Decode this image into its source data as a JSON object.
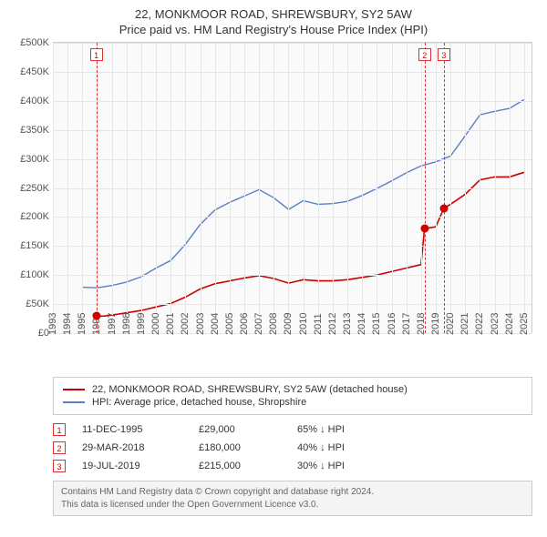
{
  "title": "22, MONKMOOR ROAD, SHREWSBURY, SY2 5AW",
  "subtitle": "Price paid vs. HM Land Registry's House Price Index (HPI)",
  "chart": {
    "type": "line",
    "background_color": "#fafafa",
    "grid_color": "#e6e6e6",
    "border_color": "#cccccc",
    "x_range": [
      1993,
      2025.5
    ],
    "y_range": [
      0,
      500000
    ],
    "y_ticks": [
      {
        "v": 0,
        "label": "£0"
      },
      {
        "v": 50000,
        "label": "£50K"
      },
      {
        "v": 100000,
        "label": "£100K"
      },
      {
        "v": 150000,
        "label": "£150K"
      },
      {
        "v": 200000,
        "label": "£200K"
      },
      {
        "v": 250000,
        "label": "£250K"
      },
      {
        "v": 300000,
        "label": "£300K"
      },
      {
        "v": 350000,
        "label": "£350K"
      },
      {
        "v": 400000,
        "label": "£400K"
      },
      {
        "v": 450000,
        "label": "£450K"
      },
      {
        "v": 500000,
        "label": "£500K"
      }
    ],
    "x_ticks": [
      1993,
      1994,
      1995,
      1996,
      1997,
      1998,
      1999,
      2000,
      2001,
      2002,
      2003,
      2004,
      2005,
      2006,
      2007,
      2008,
      2009,
      2010,
      2011,
      2012,
      2013,
      2014,
      2015,
      2016,
      2017,
      2018,
      2019,
      2020,
      2021,
      2022,
      2023,
      2024,
      2025
    ],
    "series": [
      {
        "id": "property",
        "label": "22, MONKMOOR ROAD, SHREWSBURY, SY2 5AW (detached house)",
        "color": "#cc0000",
        "line_width": 1.6,
        "points": [
          [
            1995.95,
            29000
          ],
          [
            1996.5,
            29500
          ],
          [
            1997,
            31000
          ],
          [
            1998,
            35000
          ],
          [
            1999,
            39000
          ],
          [
            2000,
            45000
          ],
          [
            2001,
            51000
          ],
          [
            2002,
            62000
          ],
          [
            2003,
            76000
          ],
          [
            2004,
            85000
          ],
          [
            2005,
            90000
          ],
          [
            2006,
            95000
          ],
          [
            2007,
            99000
          ],
          [
            2008,
            94000
          ],
          [
            2009,
            86000
          ],
          [
            2010,
            92000
          ],
          [
            2011,
            90000
          ],
          [
            2012,
            90000
          ],
          [
            2013,
            92000
          ],
          [
            2014,
            96000
          ],
          [
            2015,
            100000
          ],
          [
            2016,
            106000
          ],
          [
            2017,
            112000
          ],
          [
            2018,
            118000
          ],
          [
            2018.24,
            180000
          ],
          [
            2019,
            183000
          ],
          [
            2019.55,
            215000
          ],
          [
            2020,
            222000
          ],
          [
            2021,
            239000
          ],
          [
            2022,
            264000
          ],
          [
            2023,
            269000
          ],
          [
            2024,
            269000
          ],
          [
            2025,
            277000
          ]
        ]
      },
      {
        "id": "hpi",
        "label": "HPI: Average price, detached house, Shropshire",
        "color": "#5a7fc8",
        "line_width": 1.4,
        "points": [
          [
            1995,
            79000
          ],
          [
            1996,
            78000
          ],
          [
            1997,
            82000
          ],
          [
            1998,
            88000
          ],
          [
            1999,
            97000
          ],
          [
            2000,
            112000
          ],
          [
            2001,
            125000
          ],
          [
            2002,
            153000
          ],
          [
            2003,
            187000
          ],
          [
            2004,
            212000
          ],
          [
            2005,
            225000
          ],
          [
            2006,
            236000
          ],
          [
            2007,
            247000
          ],
          [
            2008,
            233000
          ],
          [
            2009,
            213000
          ],
          [
            2010,
            228000
          ],
          [
            2011,
            222000
          ],
          [
            2012,
            223000
          ],
          [
            2013,
            227000
          ],
          [
            2014,
            237000
          ],
          [
            2015,
            249000
          ],
          [
            2016,
            262000
          ],
          [
            2017,
            276000
          ],
          [
            2018,
            288000
          ],
          [
            2019,
            295000
          ],
          [
            2020,
            305000
          ],
          [
            2021,
            340000
          ],
          [
            2022,
            376000
          ],
          [
            2023,
            382000
          ],
          [
            2024,
            387000
          ],
          [
            2025,
            402000
          ]
        ]
      }
    ],
    "markers": [
      {
        "n": "1",
        "x": 1995.95,
        "y": 29000
      },
      {
        "n": "2",
        "x": 2018.24,
        "y": 180000
      },
      {
        "n": "3",
        "x": 2019.55,
        "y": 215000
      }
    ],
    "marker_line_color": "#e03030",
    "marker_box_border": "#e03030",
    "marker_text_color": "#cc0000"
  },
  "legend": {
    "items": [
      {
        "color": "#cc0000",
        "label": "22, MONKMOOR ROAD, SHREWSBURY, SY2 5AW (detached house)"
      },
      {
        "color": "#5a7fc8",
        "label": "HPI: Average price, detached house, Shropshire"
      }
    ]
  },
  "sales": [
    {
      "n": "1",
      "date": "11-DEC-1995",
      "price": "£29,000",
      "rel": "65% ↓ HPI"
    },
    {
      "n": "2",
      "date": "29-MAR-2018",
      "price": "£180,000",
      "rel": "40% ↓ HPI"
    },
    {
      "n": "3",
      "date": "19-JUL-2019",
      "price": "£215,000",
      "rel": "30% ↓ HPI"
    }
  ],
  "attribution_line1": "Contains HM Land Registry data © Crown copyright and database right 2024.",
  "attribution_line2": "This data is licensed under the Open Government Licence v3.0."
}
